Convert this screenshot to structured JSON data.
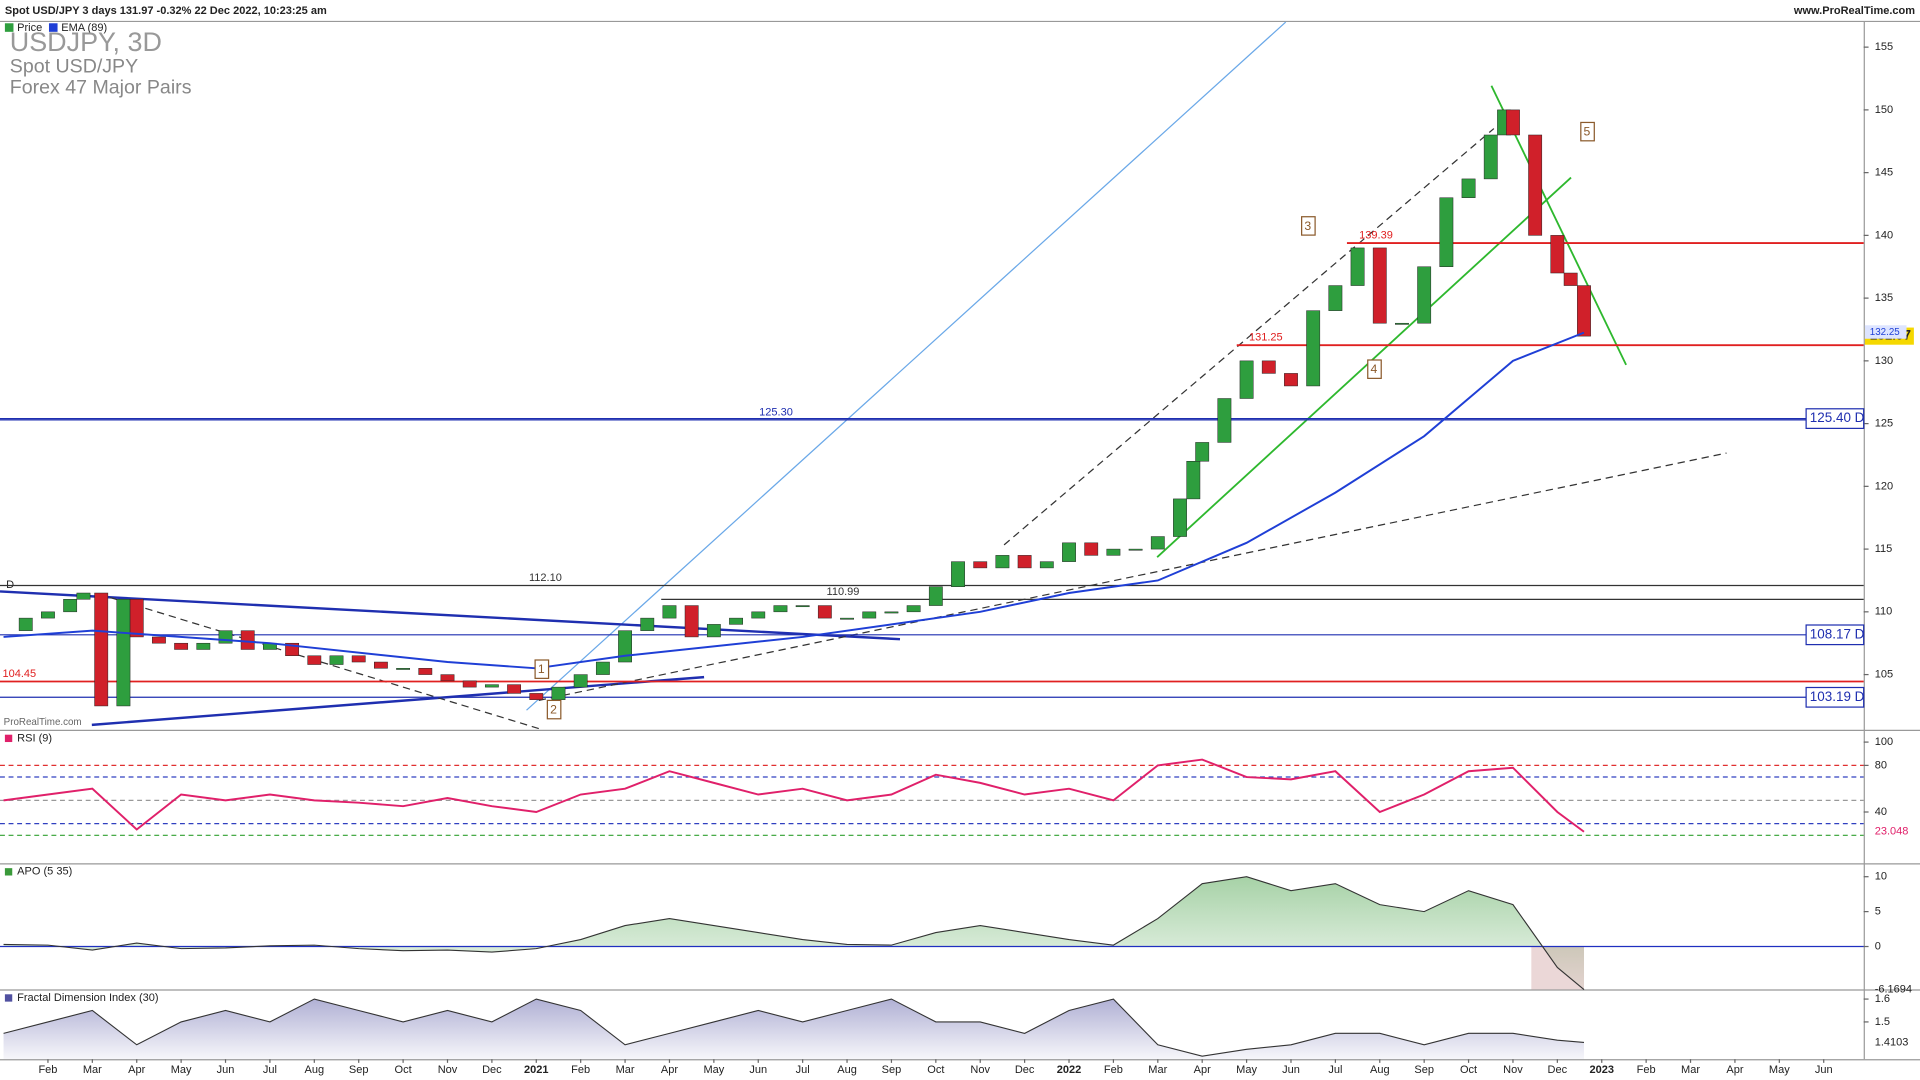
{
  "header": {
    "instrument": "Spot USD/JPY 3 days 131.97 -0.32% 22 Dec 2022, 10:23:25 am",
    "site": "www.ProRealTime.com",
    "legend": [
      "Price",
      "EMA (89)"
    ],
    "symbol": "USDJPY, 3D",
    "name": "Spot USD/JPY",
    "group": "Forex 47 Major Pairs",
    "watermark": "ProRealTime.com"
  },
  "chart_data": [
    {
      "type": "candles",
      "title": "Price",
      "xlim": [
        -0.08,
        41.9
      ],
      "ylim": [
        100.6,
        157
      ],
      "yticks": [
        105,
        110,
        115,
        120,
        125,
        130,
        135,
        140,
        145,
        150,
        155
      ],
      "x": [
        0,
        0.5,
        1,
        1.5,
        1.8,
        2.2,
        2.7,
        3,
        3.5,
        4,
        4.5,
        5,
        5.5,
        6,
        6.5,
        7,
        7.5,
        8,
        8.5,
        9,
        9.5,
        10,
        10.5,
        11,
        11.5,
        12,
        12.5,
        13,
        13.5,
        14,
        14.5,
        15,
        15.5,
        16,
        16.5,
        17,
        17.5,
        18,
        18.5,
        19,
        19.5,
        20,
        20.5,
        21,
        21.5,
        22,
        22.5,
        23,
        23.5,
        24,
        24.5,
        25,
        25.5,
        26,
        26.5,
        26.8,
        27,
        27.5,
        28,
        28.5,
        29,
        29.5,
        30,
        30.5,
        31,
        31.5,
        32,
        32.5,
        33,
        33.5,
        33.8,
        34,
        34.5,
        35,
        35.3,
        35.6
      ],
      "values": [
        108.5,
        109.5,
        110,
        111,
        111.5,
        102.5,
        111,
        108,
        107.5,
        107,
        107.5,
        108.5,
        107,
        107.5,
        106.5,
        105.8,
        106.5,
        106,
        105.5,
        105.5,
        105,
        104.5,
        104,
        104.2,
        103.5,
        103,
        104,
        105,
        106,
        108.5,
        109.5,
        110.5,
        108,
        109,
        109.5,
        110,
        110.5,
        110.5,
        109.5,
        109.5,
        110,
        110,
        110.5,
        112,
        114,
        113.5,
        114.5,
        113.5,
        114,
        115.5,
        114.5,
        115,
        115,
        116,
        119,
        122,
        123.5,
        127,
        130,
        129,
        128,
        134,
        136,
        139,
        133,
        133,
        137.5,
        143,
        144.5,
        148,
        150,
        148,
        140,
        137,
        136,
        131.97
      ],
      "up_color": "#2e9e3e",
      "down_color": "#d0202a",
      "ema": {
        "name": "EMA (89)",
        "color": "#1f3fd6",
        "x": [
          0,
          2,
          6,
          10,
          12,
          14,
          18,
          22,
          24,
          26,
          28,
          30,
          32,
          34,
          35.6
        ],
        "values": [
          108,
          108.5,
          107.5,
          106,
          105.5,
          106.5,
          108,
          110,
          111.5,
          112.5,
          115.5,
          119.5,
          124,
          130,
          132.25
        ]
      },
      "levels": [
        {
          "value": 131.25,
          "label": "131.25",
          "color": "#e02020"
        },
        {
          "value": 139.39,
          "label": "139.39",
          "color": "#e02020"
        },
        {
          "value": 104.45,
          "label": "104.45",
          "color": "#e02020"
        },
        {
          "value": 125.3,
          "label": "125.30",
          "color": "#1f2fb0"
        },
        {
          "value": 112.1,
          "label": "112.10",
          "color": "#333333"
        },
        {
          "value": 110.99,
          "label": "110.99",
          "color": "#333333"
        }
      ],
      "right_labels": [
        {
          "value": 125.4,
          "label": "125.40 D"
        },
        {
          "value": 108.17,
          "label": "108.17 D"
        },
        {
          "value": 103.19,
          "label": "103.19 D"
        }
      ],
      "waves": [
        "1",
        "2",
        "3",
        "4",
        "5"
      ]
    },
    {
      "type": "line",
      "title": "RSI (9)",
      "color": "#e0206a",
      "xlim": [
        -0.08,
        41.9
      ],
      "ylim": [
        -4,
        109.5
      ],
      "yticks": [
        100,
        80,
        40
      ],
      "levels": [
        {
          "value": 80,
          "color": "#e03030"
        },
        {
          "value": 70,
          "color": "#3040c0"
        },
        {
          "value": 50,
          "color": "#999999"
        },
        {
          "value": 30,
          "color": "#3040c0"
        },
        {
          "value": 20,
          "color": "#30a030"
        }
      ],
      "x": [
        0,
        1,
        2,
        3,
        4,
        5,
        6,
        7,
        8,
        9,
        10,
        11,
        12,
        13,
        14,
        15,
        16,
        17,
        18,
        19,
        20,
        21,
        22,
        23,
        24,
        25,
        26,
        27,
        28,
        29,
        30,
        31,
        32,
        33,
        34,
        35,
        35.6
      ],
      "values": [
        50,
        55,
        60,
        25,
        55,
        50,
        55,
        50,
        48,
        45,
        52,
        45,
        40,
        55,
        60,
        75,
        65,
        55,
        60,
        50,
        55,
        72,
        65,
        55,
        60,
        50,
        80,
        85,
        70,
        68,
        75,
        40,
        55,
        75,
        78,
        40,
        23.048
      ]
    },
    {
      "type": "area",
      "title": "APO (5 35)",
      "pos_color": "#3a9a3a",
      "neg_color": "#b06060",
      "xlim": [
        -0.08,
        41.9
      ],
      "ylim": [
        -6.14,
        11.75
      ],
      "yticks": [
        10,
        5,
        0
      ],
      "x": [
        0,
        1,
        2,
        3,
        4,
        5,
        6,
        7,
        8,
        9,
        10,
        11,
        12,
        13,
        14,
        15,
        16,
        17,
        18,
        19,
        20,
        21,
        22,
        23,
        24,
        25,
        26,
        27,
        28,
        29,
        30,
        31,
        32,
        33,
        34,
        35,
        35.6
      ],
      "values": [
        0.3,
        0.2,
        -0.5,
        0.5,
        -0.3,
        -0.2,
        0.1,
        0.2,
        -0.3,
        -0.6,
        -0.5,
        -0.8,
        -0.3,
        1,
        3,
        4,
        3,
        2,
        1,
        0.3,
        0.2,
        2,
        3,
        2,
        1,
        0.2,
        4,
        9,
        10,
        8,
        9,
        6,
        5,
        8,
        6,
        -3,
        -6.1694
      ]
    },
    {
      "type": "area",
      "title": "Fractal Dimension Index (30)",
      "color": "#5050a0",
      "xlim": [
        -0.08,
        41.9
      ],
      "ylim": [
        1.337,
        1.637
      ],
      "yticks": [
        1.6,
        1.5
      ],
      "x": [
        0,
        1,
        2,
        3,
        4,
        5,
        6,
        7,
        8,
        9,
        10,
        11,
        12,
        13,
        14,
        15,
        16,
        17,
        18,
        19,
        20,
        21,
        22,
        23,
        24,
        25,
        26,
        27,
        28,
        29,
        30,
        31,
        32,
        33,
        34,
        35,
        35.6
      ],
      "values": [
        1.45,
        1.5,
        1.55,
        1.4,
        1.5,
        1.55,
        1.5,
        1.6,
        1.55,
        1.5,
        1.55,
        1.5,
        1.6,
        1.55,
        1.4,
        1.45,
        1.5,
        1.55,
        1.5,
        1.55,
        1.6,
        1.5,
        1.5,
        1.45,
        1.55,
        1.6,
        1.4,
        1.35,
        1.38,
        1.4,
        1.45,
        1.45,
        1.4,
        1.45,
        1.45,
        1.42,
        1.4103
      ],
      "xticks": [
        {
          "value": 1,
          "label": "Feb"
        },
        {
          "value": 2,
          "label": "Mar"
        },
        {
          "value": 3,
          "label": "Apr"
        },
        {
          "value": 4,
          "label": "May"
        },
        {
          "value": 5,
          "label": "Jun"
        },
        {
          "value": 6,
          "label": "Jul"
        },
        {
          "value": 7,
          "label": "Aug"
        },
        {
          "value": 8,
          "label": "Sep"
        },
        {
          "value": 9,
          "label": "Oct"
        },
        {
          "value": 10,
          "label": "Nov"
        },
        {
          "value": 11,
          "label": "Dec"
        },
        {
          "value": 12,
          "label": "2021"
        },
        {
          "value": 13,
          "label": "Feb"
        },
        {
          "value": 14,
          "label": "Mar"
        },
        {
          "value": 15,
          "label": "Apr"
        },
        {
          "value": 16,
          "label": "May"
        },
        {
          "value": 17,
          "label": "Jun"
        },
        {
          "value": 18,
          "label": "Jul"
        },
        {
          "value": 19,
          "label": "Aug"
        },
        {
          "value": 20,
          "label": "Sep"
        },
        {
          "value": 21,
          "label": "Oct"
        },
        {
          "value": 22,
          "label": "Nov"
        },
        {
          "value": 23,
          "label": "Dec"
        },
        {
          "value": 24,
          "label": "2022"
        },
        {
          "value": 25,
          "label": "Feb"
        },
        {
          "value": 26,
          "label": "Mar"
        },
        {
          "value": 27,
          "label": "Apr"
        },
        {
          "value": 28,
          "label": "May"
        },
        {
          "value": 29,
          "label": "Jun"
        },
        {
          "value": 30,
          "label": "Jul"
        },
        {
          "value": 31,
          "label": "Aug"
        },
        {
          "value": 32,
          "label": "Sep"
        },
        {
          "value": 33,
          "label": "Oct"
        },
        {
          "value": 34,
          "label": "Nov"
        },
        {
          "value": 35,
          "label": "Dec"
        },
        {
          "value": 36,
          "label": "2023"
        },
        {
          "value": 37,
          "label": "Feb"
        },
        {
          "value": 38,
          "label": "Mar"
        },
        {
          "value": 39,
          "label": "Apr"
        },
        {
          "value": 40,
          "label": "May"
        },
        {
          "value": 41,
          "label": "Jun"
        }
      ]
    }
  ]
}
